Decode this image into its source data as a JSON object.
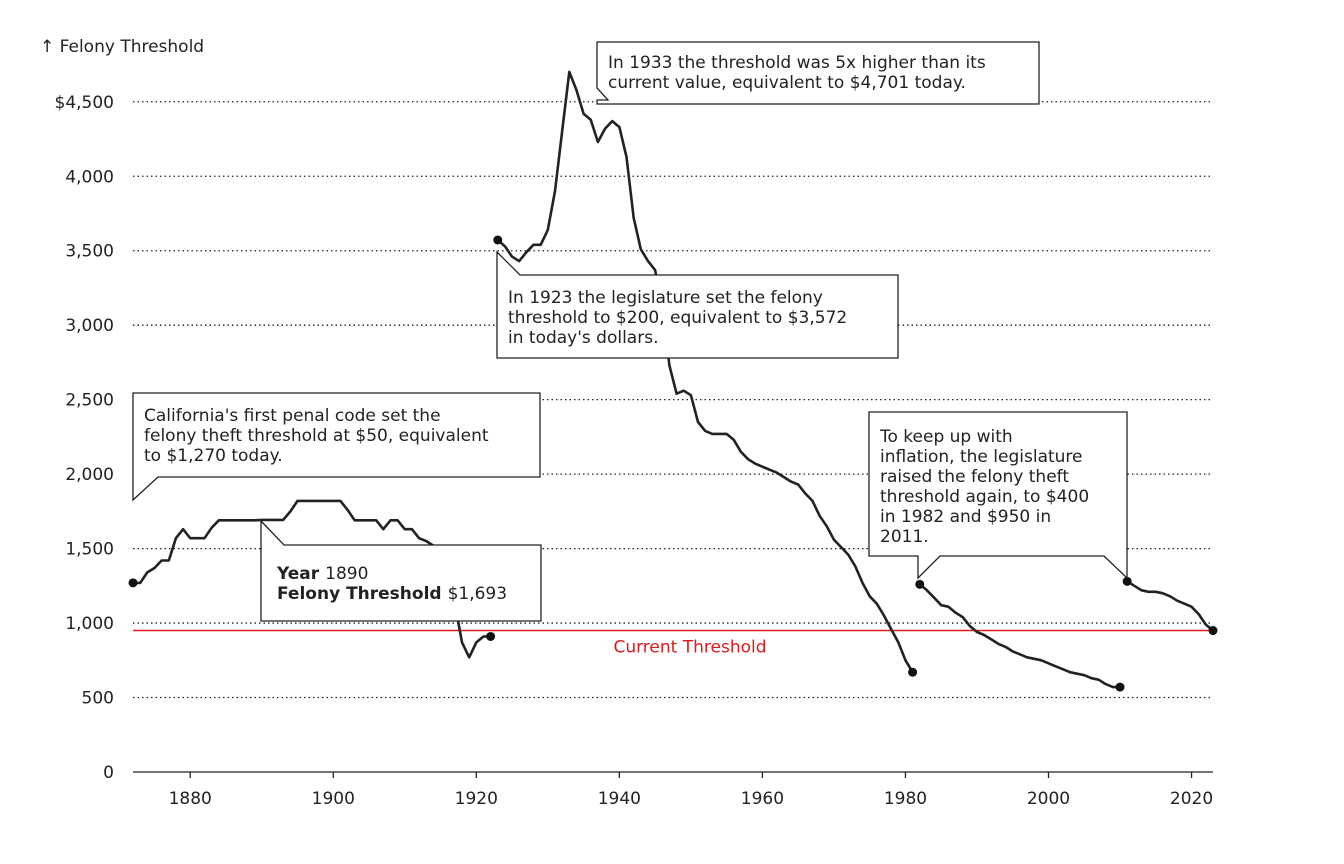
{
  "chart_data": {
    "type": "line",
    "title": "",
    "ylabel": "↑ Felony Threshold",
    "xlabel": "",
    "xlim": [
      1872,
      2023
    ],
    "ylim": [
      0,
      4700
    ],
    "grid": "horizontal dotted",
    "x_ticks": [
      1880,
      1900,
      1920,
      1940,
      1960,
      1980,
      2000,
      2020
    ],
    "y_ticks": [
      {
        "value": 0,
        "label": "0"
      },
      {
        "value": 500,
        "label": "500"
      },
      {
        "value": 1000,
        "label": "1,000"
      },
      {
        "value": 1500,
        "label": "1,500"
      },
      {
        "value": 2000,
        "label": "2,000"
      },
      {
        "value": 2500,
        "label": "2,500"
      },
      {
        "value": 3000,
        "label": "3,000"
      },
      {
        "value": 3500,
        "label": "3,500"
      },
      {
        "value": 4000,
        "label": "4,000"
      },
      {
        "value": 4500,
        "label": "$4,500"
      }
    ],
    "current_threshold": {
      "value": 950,
      "label": "Current Threshold",
      "color": "#e0191c"
    },
    "line_color": "#222222",
    "series": [
      {
        "x": [
          1872,
          1873,
          1874,
          1875,
          1876,
          1877,
          1878,
          1879,
          1880,
          1881,
          1882,
          1883,
          1884,
          1885,
          1886,
          1887,
          1888,
          1889,
          1890,
          1891,
          1892,
          1893,
          1894,
          1895,
          1896,
          1897,
          1898,
          1899,
          1900,
          1901,
          1902,
          1903,
          1904,
          1905,
          1906,
          1907,
          1908,
          1909,
          1910,
          1911,
          1912,
          1913,
          1914,
          1915,
          1916,
          1917,
          1918,
          1919,
          1920,
          1921,
          1922
        ],
        "y": [
          1270,
          1270,
          1340,
          1370,
          1420,
          1420,
          1570,
          1630,
          1570,
          1570,
          1570,
          1640,
          1690,
          1690,
          1690,
          1690,
          1690,
          1690,
          1693,
          1693,
          1693,
          1693,
          1750,
          1820,
          1820,
          1820,
          1820,
          1820,
          1820,
          1820,
          1760,
          1690,
          1690,
          1690,
          1690,
          1630,
          1690,
          1690,
          1630,
          1630,
          1570,
          1550,
          1520,
          1470,
          1330,
          1130,
          870,
          770,
          870,
          910,
          910
        ]
      },
      {
        "x": [
          1923,
          1924,
          1925,
          1926,
          1927,
          1928,
          1929,
          1930,
          1931,
          1932,
          1933,
          1934,
          1935,
          1936,
          1937,
          1938,
          1939,
          1940,
          1941,
          1942,
          1943,
          1944,
          1945,
          1946,
          1947,
          1948,
          1949,
          1950,
          1951,
          1952,
          1953,
          1954,
          1955,
          1956,
          1957,
          1958,
          1959,
          1960,
          1961,
          1962,
          1963,
          1964,
          1965,
          1966,
          1967,
          1968,
          1969,
          1970,
          1971,
          1972,
          1973,
          1974,
          1975,
          1976,
          1977,
          1978,
          1979,
          1980,
          1981
        ],
        "y": [
          3572,
          3530,
          3460,
          3430,
          3490,
          3540,
          3540,
          3640,
          3900,
          4300,
          4701,
          4580,
          4420,
          4380,
          4230,
          4320,
          4370,
          4330,
          4130,
          3720,
          3510,
          3430,
          3370,
          3120,
          2730,
          2540,
          2560,
          2530,
          2350,
          2290,
          2270,
          2270,
          2270,
          2230,
          2150,
          2100,
          2070,
          2050,
          2030,
          2010,
          1980,
          1950,
          1930,
          1870,
          1820,
          1720,
          1650,
          1560,
          1510,
          1460,
          1380,
          1270,
          1180,
          1130,
          1050,
          960,
          870,
          750,
          670
        ]
      },
      {
        "x": [
          1982,
          1983,
          1984,
          1985,
          1986,
          1987,
          1988,
          1989,
          1990,
          1991,
          1992,
          1993,
          1994,
          1995,
          1996,
          1997,
          1998,
          1999,
          2000,
          2001,
          2002,
          2003,
          2004,
          2005,
          2006,
          2007,
          2008,
          2009,
          2010
        ],
        "y": [
          1260,
          1220,
          1170,
          1120,
          1110,
          1070,
          1040,
          980,
          940,
          920,
          890,
          860,
          840,
          810,
          790,
          770,
          760,
          750,
          730,
          710,
          690,
          670,
          660,
          650,
          630,
          620,
          590,
          570,
          570
        ]
      },
      {
        "x": [
          2011,
          2012,
          2013,
          2014,
          2015,
          2016,
          2017,
          2018,
          2019,
          2020,
          2021,
          2022,
          2023
        ],
        "y": [
          1280,
          1250,
          1220,
          1210,
          1210,
          1200,
          1180,
          1150,
          1130,
          1110,
          1060,
          990,
          950
        ]
      }
    ],
    "points": [
      {
        "x": 1872,
        "y": 1270
      },
      {
        "x": 1922,
        "y": 910
      },
      {
        "x": 1923,
        "y": 3572
      },
      {
        "x": 1981,
        "y": 670
      },
      {
        "x": 1982,
        "y": 1260
      },
      {
        "x": 2010,
        "y": 570
      },
      {
        "x": 2011,
        "y": 1280
      },
      {
        "x": 2023,
        "y": 950
      }
    ],
    "annotations": [
      {
        "lines": [
          "In 1933 the threshold was 5x higher than its",
          "current value, equivalent to $4,701 today."
        ]
      },
      {
        "lines": [
          "In 1923 the legislature set the felony",
          "threshold to $200, equivalent to $3,572",
          "in today's dollars."
        ]
      },
      {
        "lines": [
          "California's first penal code set the",
          "felony theft threshold at $50, equivalent",
          "to $1,270 today."
        ]
      },
      {
        "lines": [
          "To keep up with",
          "inflation, the legislature",
          "raised the felony theft",
          "threshold again, to $400",
          "in 1982 and $950 in",
          "2011."
        ]
      }
    ],
    "tooltip": {
      "year_label": "Year",
      "year_value": "1890",
      "threshold_label": "Felony Threshold",
      "threshold_value": "$1,693"
    }
  }
}
